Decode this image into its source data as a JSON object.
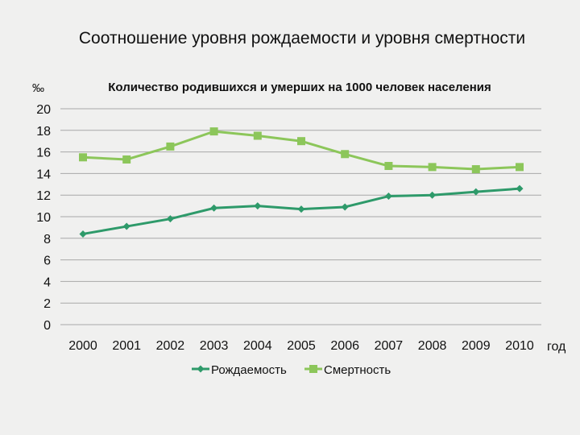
{
  "slide_title": "Соотношение уровня рождаемости и уровня смертности",
  "colors": {
    "birth": "#2e9a6a",
    "death": "#8cc65a",
    "grid": "#a8a8a8"
  },
  "chart_data": {
    "type": "line",
    "title": "Количество родившихся и умерших на 1000 человек населения",
    "ylabel": "‰",
    "xlabel": "год",
    "ylim": [
      0,
      20
    ],
    "yticks": [
      0,
      2,
      4,
      6,
      8,
      10,
      12,
      14,
      16,
      18,
      20
    ],
    "grid": true,
    "legend_position": "bottom",
    "x": [
      "2000",
      "2001",
      "2002",
      "2003",
      "2004",
      "2005",
      "2006",
      "2007",
      "2008",
      "2009",
      "2010"
    ],
    "series": [
      {
        "name": "Рождаемость",
        "marker": "diamond",
        "values": [
          8.4,
          9.1,
          9.8,
          10.8,
          11.0,
          10.7,
          10.9,
          11.9,
          12.0,
          12.3,
          12.6
        ]
      },
      {
        "name": "Смертность",
        "marker": "square",
        "values": [
          15.5,
          15.3,
          16.5,
          17.9,
          17.5,
          17.0,
          15.8,
          14.7,
          14.6,
          14.4,
          14.6
        ]
      }
    ]
  }
}
